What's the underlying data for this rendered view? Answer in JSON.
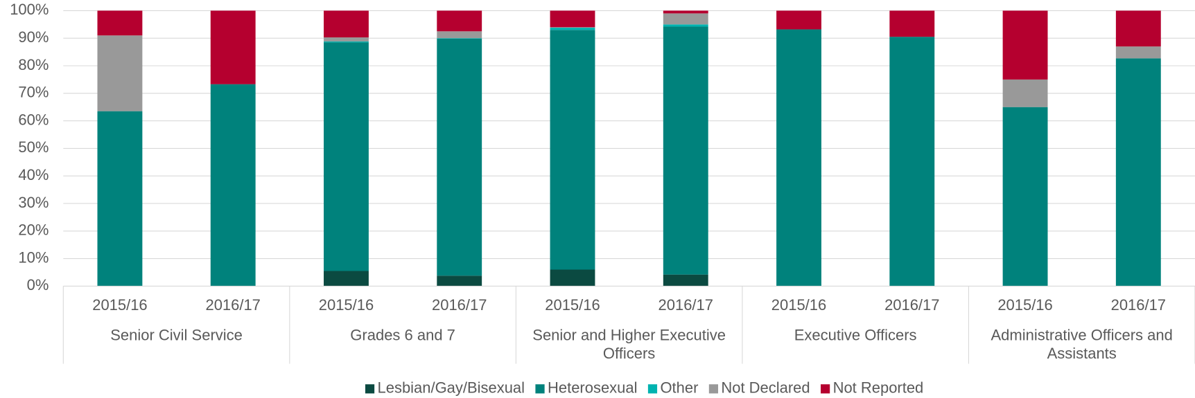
{
  "chart_data": {
    "type": "stacked_bar",
    "categories": [
      "2015/16",
      "2016/17",
      "2015/16",
      "2016/17",
      "2015/16",
      "2016/17",
      "2015/16",
      "2016/17",
      "2015/16",
      "2016/17"
    ],
    "groups": [
      "Senior Civil Service",
      "Grades 6 and 7",
      "Senior and Higher Executive Officers",
      "Executive Officers",
      "Administrative Officers and Assistants"
    ],
    "series": [
      {
        "name": "Lesbian/Gay/Bisexual",
        "color": "#0b4a41",
        "values": [
          0,
          0,
          5.5,
          3.8,
          6,
          4.2,
          0,
          0,
          0,
          0
        ]
      },
      {
        "name": "Heterosexual",
        "color": "#00827c",
        "values": [
          63.5,
          73.3,
          83,
          86,
          87,
          90,
          93.2,
          90.5,
          65,
          82.7
        ]
      },
      {
        "name": "Other",
        "color": "#00b3b0",
        "values": [
          0,
          0,
          0.3,
          0.2,
          0.8,
          0.8,
          0,
          0,
          0,
          0
        ]
      },
      {
        "name": "Not Declared",
        "color": "#999999",
        "values": [
          27.5,
          0,
          1.5,
          2.5,
          0.2,
          4,
          0,
          0,
          10,
          4.3
        ]
      },
      {
        "name": "Not Reported",
        "color": "#b5002f",
        "values": [
          9,
          26.7,
          9.7,
          7.5,
          6,
          1,
          6.8,
          9.5,
          25,
          13
        ]
      }
    ],
    "ylim": [
      0,
      100
    ],
    "yticks": [
      {
        "value": 0,
        "label": "0%"
      },
      {
        "value": 10,
        "label": "10%"
      },
      {
        "value": 20,
        "label": "20%"
      },
      {
        "value": 30,
        "label": "30%"
      },
      {
        "value": 40,
        "label": "40%"
      },
      {
        "value": 50,
        "label": "50%"
      },
      {
        "value": 60,
        "label": "60%"
      },
      {
        "value": 70,
        "label": "70%"
      },
      {
        "value": 80,
        "label": "80%"
      },
      {
        "value": 90,
        "label": "90%"
      },
      {
        "value": 100,
        "label": "100%"
      }
    ],
    "grid": true,
    "legend": "bottom"
  }
}
